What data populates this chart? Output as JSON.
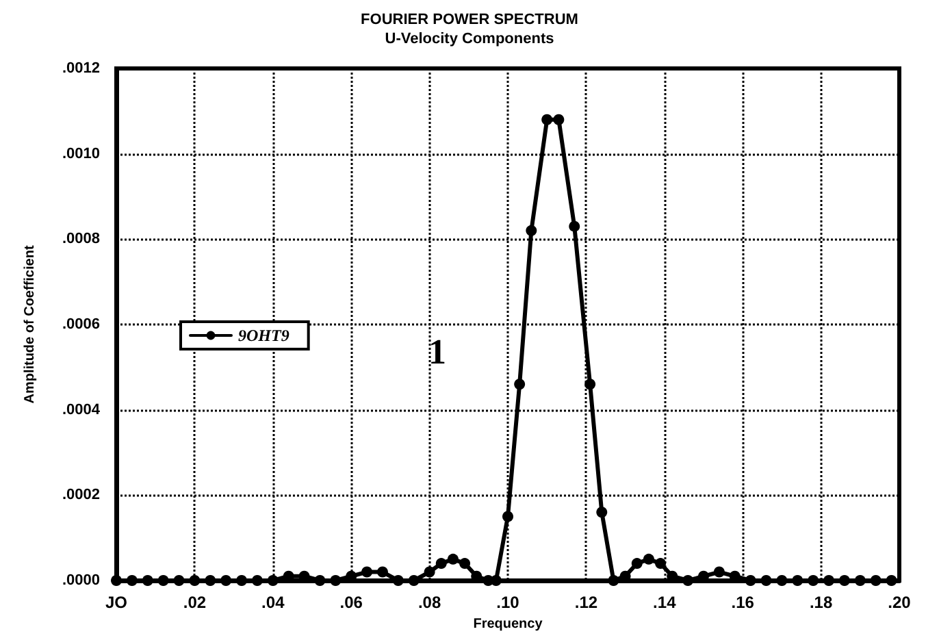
{
  "chart_data": {
    "type": "line",
    "title": "FOURIER POWER SPECTRUM",
    "subtitle": "U-Velocity Components",
    "xlabel": "Frequency",
    "ylabel": "Amplitude of Coefficient",
    "annotations": [
      "1"
    ],
    "series": [
      {
        "name": "9OHT9",
        "color": "#000000",
        "x": [
          0,
          0.004,
          0.008,
          0.012,
          0.016,
          0.02,
          0.024,
          0.028,
          0.032,
          0.036,
          0.04,
          0.044,
          0.048,
          0.052,
          0.056,
          0.06,
          0.064,
          0.068,
          0.072,
          0.076,
          0.08,
          0.083,
          0.086,
          0.089,
          0.092,
          0.095,
          0.097,
          0.1,
          0.103,
          0.106,
          0.11,
          0.113,
          0.117,
          0.121,
          0.124,
          0.127,
          0.13,
          0.133,
          0.136,
          0.139,
          0.142,
          0.146,
          0.15,
          0.154,
          0.158,
          0.162,
          0.166,
          0.17,
          0.174,
          0.178,
          0.182,
          0.186,
          0.19,
          0.194,
          0.198
        ],
        "values": [
          0,
          0,
          0,
          0,
          0,
          0,
          0,
          0,
          0,
          0,
          0,
          1e-05,
          1e-05,
          0,
          0,
          1e-05,
          2e-05,
          2e-05,
          0,
          0,
          2e-05,
          4e-05,
          5e-05,
          4e-05,
          1e-05,
          0,
          0,
          0.00015,
          0.00046,
          0.00082,
          0.00108,
          0.00108,
          0.00083,
          0.00046,
          0.00016,
          0,
          1e-05,
          4e-05,
          5e-05,
          4e-05,
          1e-05,
          0,
          1e-05,
          2e-05,
          1e-05,
          0,
          0,
          0,
          0,
          0,
          0,
          0,
          0,
          0,
          0
        ]
      }
    ],
    "xlim": [
      0,
      0.2
    ],
    "xticks": [
      {
        "value": 0,
        "label": "JO"
      },
      {
        "value": 0.02,
        "label": ".02"
      },
      {
        "value": 0.04,
        "label": ".04"
      },
      {
        "value": 0.06,
        "label": ".06"
      },
      {
        "value": 0.08,
        "label": ".08"
      },
      {
        "value": 0.1,
        "label": ".10"
      },
      {
        "value": 0.12,
        "label": ".12"
      },
      {
        "value": 0.14,
        "label": ".14"
      },
      {
        "value": 0.16,
        "label": ".16"
      },
      {
        "value": 0.18,
        "label": ".18"
      },
      {
        "value": 0.2,
        "label": ".20"
      }
    ],
    "ylim": [
      0,
      0.0012
    ],
    "yticks": [
      {
        "value": 0,
        "label": ".0000"
      },
      {
        "value": 0.0002,
        "label": ".0002"
      },
      {
        "value": 0.0004,
        "label": ".0004"
      },
      {
        "value": 0.0006,
        "label": ".0006"
      },
      {
        "value": 0.0008,
        "label": ".0008"
      },
      {
        "value": 0.001,
        "label": ".0010"
      },
      {
        "value": 0.0012,
        "label": ".0012"
      }
    ],
    "grid": true,
    "legend": "left",
    "marker": "circle",
    "line_style": "solid"
  }
}
